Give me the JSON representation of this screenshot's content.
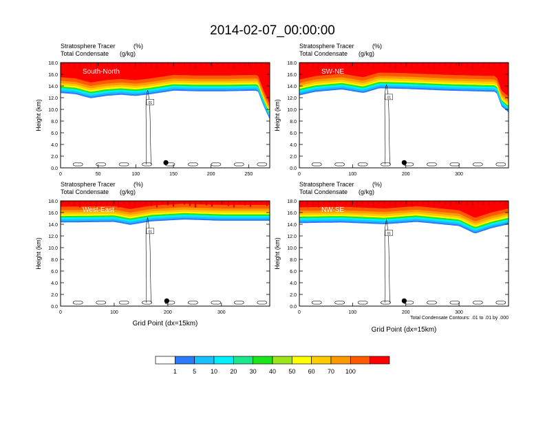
{
  "page": {
    "title": "2014-02-07_00:00:00"
  },
  "panel_header": {
    "left_line1": "Stratosphere Tracer",
    "right_line1": "(%)",
    "left_line2": "Total Condensate",
    "right_line2": "(g/kg)"
  },
  "footnote": "Total Condensate Contours: .01 to .01 by .000",
  "colorbar": {
    "colors": [
      "#ffffff",
      "#2b7bff",
      "#17c0ff",
      "#00f0ff",
      "#1ae68c",
      "#1ae61a",
      "#9be61a",
      "#ffff00",
      "#ffcc00",
      "#ff9900",
      "#ff5a00",
      "#ff0000"
    ],
    "labels": [
      "1",
      "5",
      "10",
      "20",
      "30",
      "40",
      "50",
      "60",
      "70",
      "100"
    ]
  },
  "chart_data": [
    {
      "type": "heatmap",
      "title": "South-North",
      "ylabel": "Height (km)",
      "xlabel": "",
      "xlim": [
        0,
        278
      ],
      "ylim": [
        0,
        18
      ],
      "xticks": [
        0,
        50,
        100,
        150,
        200,
        250
      ],
      "yticks": [
        "0.0",
        "2.0",
        "4.0",
        "6.0",
        "8.0",
        "10.0",
        "12.0",
        "14.0",
        "16.0",
        "18.0"
      ],
      "marker_x": 140,
      "contour_label": ".01",
      "tropopause_km": [
        [
          0,
          13.8
        ],
        [
          20,
          13.6
        ],
        [
          40,
          12.9
        ],
        [
          60,
          13.3
        ],
        [
          80,
          13.5
        ],
        [
          100,
          13.3
        ],
        [
          120,
          13.6
        ],
        [
          150,
          14.2
        ],
        [
          180,
          14.1
        ],
        [
          220,
          14.1
        ],
        [
          262,
          14.2
        ],
        [
          270,
          11.5
        ],
        [
          278,
          9.3
        ]
      ]
    },
    {
      "type": "heatmap",
      "title": "SW-NE",
      "ylabel": "Height (km)",
      "xlabel": "",
      "xlim": [
        0,
        393
      ],
      "ylim": [
        0,
        18
      ],
      "xticks": [
        0,
        100,
        200,
        300
      ],
      "yticks": [
        "0.0",
        "2.0",
        "4.0",
        "6.0",
        "8.0",
        "10.0",
        "12.0",
        "14.0",
        "16.0",
        "18.0"
      ],
      "marker_x": 197,
      "contour_label": ".01",
      "tropopause_km": [
        [
          0,
          13.4
        ],
        [
          30,
          14.0
        ],
        [
          80,
          14.4
        ],
        [
          120,
          13.8
        ],
        [
          150,
          14.6
        ],
        [
          200,
          14.5
        ],
        [
          280,
          14.2
        ],
        [
          370,
          14.0
        ],
        [
          380,
          11.5
        ],
        [
          393,
          10.5
        ]
      ]
    },
    {
      "type": "heatmap",
      "title": "West-East",
      "ylabel": "Height (km)",
      "xlabel": "Grid Point (dx=15km)",
      "xlim": [
        0,
        390
      ],
      "ylim": [
        0,
        18
      ],
      "xticks": [
        0,
        100,
        200,
        300
      ],
      "yticks": [
        "0.0",
        "2.0",
        "4.0",
        "6.0",
        "8.0",
        "10.0",
        "12.0",
        "14.0",
        "16.0",
        "18.0"
      ],
      "marker_x": 198,
      "contour_label": ".01",
      "tropopause_km": [
        [
          0,
          15.3
        ],
        [
          100,
          15.4
        ],
        [
          130,
          14.9
        ],
        [
          170,
          15.5
        ],
        [
          230,
          15.8
        ],
        [
          300,
          15.6
        ],
        [
          390,
          15.6
        ]
      ]
    },
    {
      "type": "heatmap",
      "title": "NW-SE",
      "ylabel": "Height (km)",
      "xlabel": "Grid Point (dx=15km)",
      "xlim": [
        0,
        393
      ],
      "ylim": [
        0,
        18
      ],
      "xticks": [
        0,
        100,
        200,
        300
      ],
      "yticks": [
        "0.0",
        "2.0",
        "4.0",
        "6.0",
        "8.0",
        "10.0",
        "12.0",
        "14.0",
        "16.0",
        "18.0"
      ],
      "marker_x": 197,
      "contour_label": ".01",
      "tropopause_km": [
        [
          0,
          15.2
        ],
        [
          80,
          15.3
        ],
        [
          160,
          15.0
        ],
        [
          220,
          15.4
        ],
        [
          300,
          14.7
        ],
        [
          330,
          13.4
        ],
        [
          360,
          14.3
        ],
        [
          393,
          15.0
        ]
      ]
    }
  ]
}
